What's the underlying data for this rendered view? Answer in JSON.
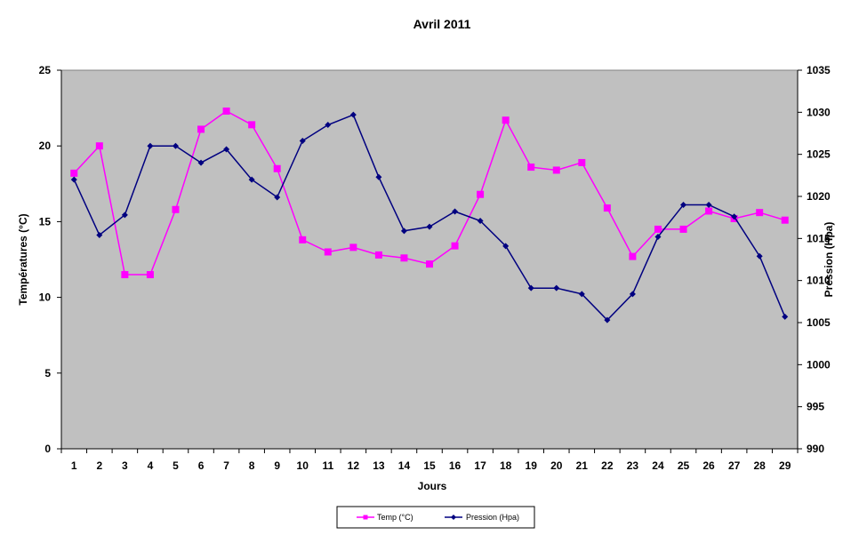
{
  "chart_data": {
    "type": "line",
    "title": "Avril 2011",
    "xlabel": "Jours",
    "ylabel_left": "Températures (°C)",
    "ylabel_right": "Pression (Hpa)",
    "y_left": {
      "min": 0,
      "max": 25,
      "ticks": [
        "0",
        "5",
        "10",
        "15",
        "20",
        "25"
      ]
    },
    "y_right": {
      "min": 990,
      "max": 1035,
      "ticks": [
        "990",
        "995",
        "1000",
        "1005",
        "1010",
        "1015",
        "1020",
        "1025",
        "1030",
        "1035"
      ]
    },
    "x": [
      1,
      2,
      3,
      4,
      5,
      6,
      7,
      8,
      9,
      10,
      11,
      12,
      13,
      14,
      15,
      16,
      17,
      18,
      19,
      20,
      21,
      22,
      23,
      24,
      25,
      26,
      27,
      28,
      29
    ],
    "series": [
      {
        "name": "Temp (°C)",
        "axis": "left",
        "color": "#ff00ff",
        "marker": "square",
        "values": [
          18.2,
          20.0,
          11.5,
          11.5,
          15.8,
          21.1,
          22.3,
          21.4,
          18.5,
          13.8,
          13.0,
          13.3,
          12.8,
          12.6,
          12.2,
          13.4,
          16.8,
          21.7,
          18.6,
          18.4,
          18.9,
          15.9,
          12.7,
          14.5,
          14.5,
          15.7,
          15.2,
          15.6,
          15.1
        ]
      },
      {
        "name": "Pression (Hpa)",
        "axis": "right",
        "color": "#000080",
        "marker": "diamond",
        "values": [
          1022,
          1015.4,
          1017.8,
          1026,
          1026,
          1024,
          1025.6,
          1022,
          1019.9,
          1026.6,
          1028.5,
          1029.7,
          1022.3,
          1015.9,
          1016.4,
          1018.2,
          1017.1,
          1014.1,
          1009.1,
          1009.1,
          1008.4,
          1005.3,
          1008.4,
          1015.2,
          1019,
          1019,
          1017.6,
          1012.9,
          1005.7
        ]
      }
    ],
    "grid": false,
    "plot_background": "#c0c0c0",
    "legend_position": "bottom"
  }
}
